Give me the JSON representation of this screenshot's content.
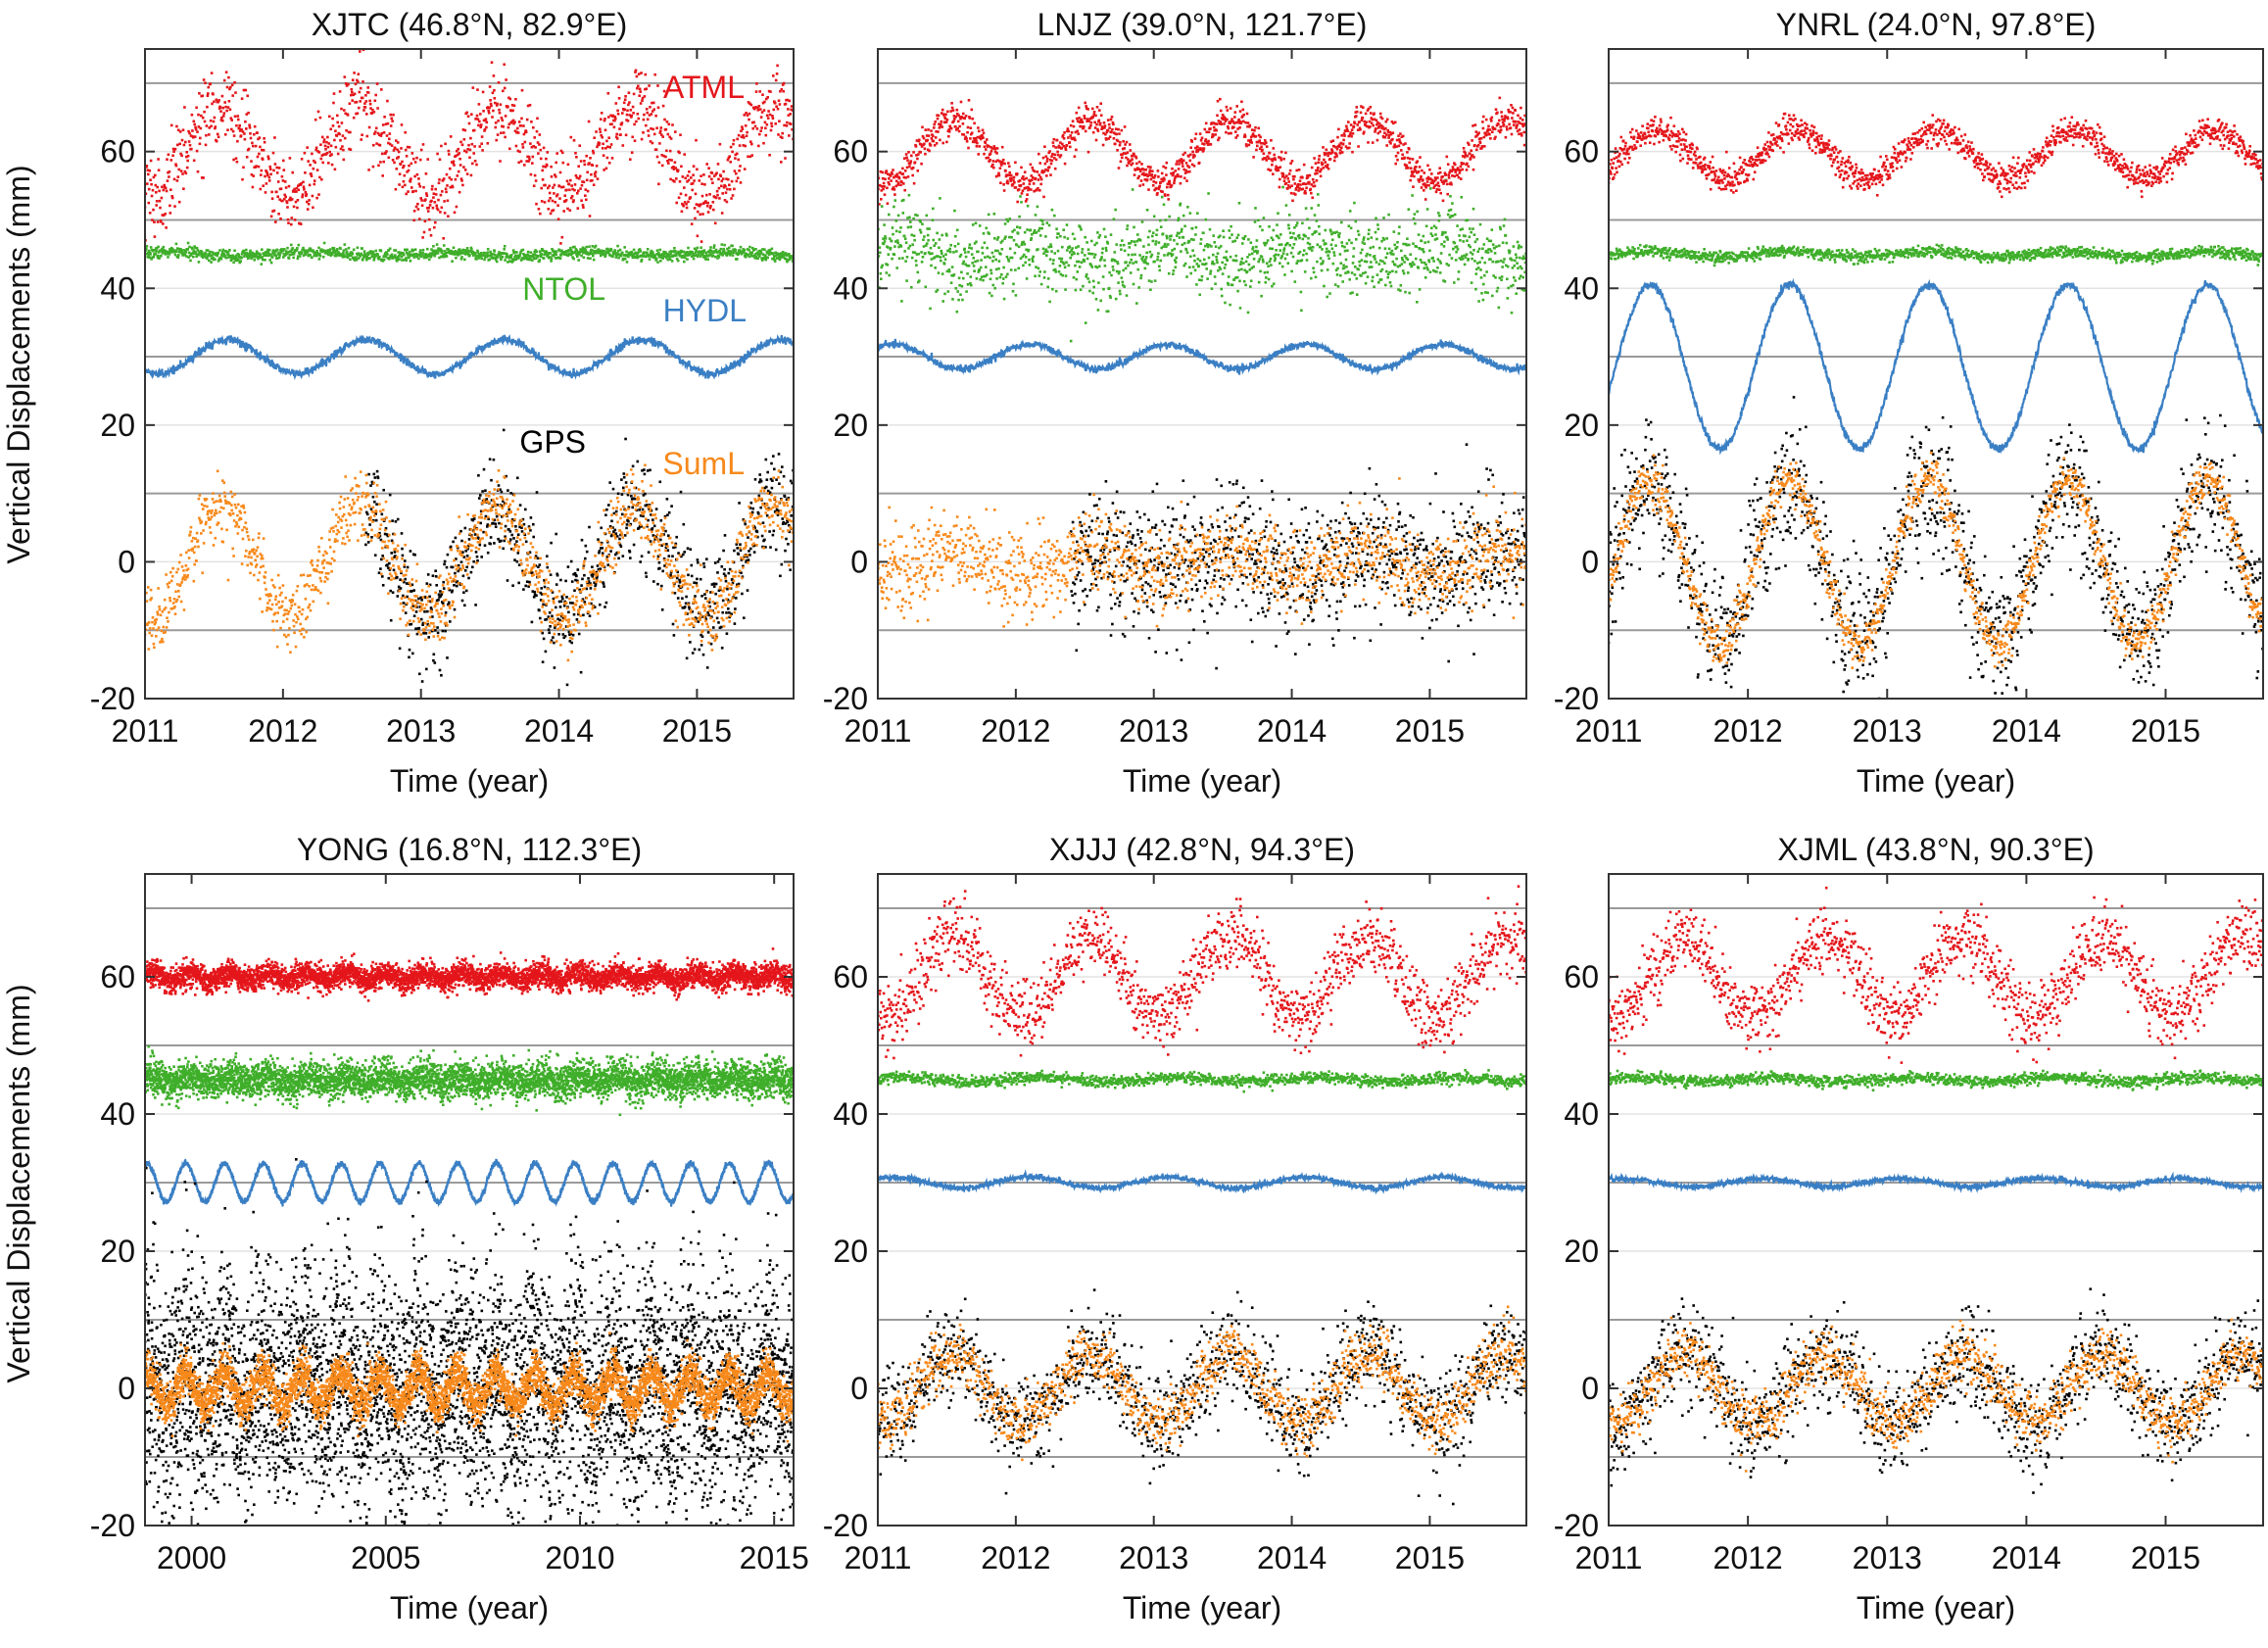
{
  "figure": {
    "ylabel_top": "Vertical Displacements (mm)",
    "ylabel_bottom": "Vertical Displacements (mm)"
  },
  "colors": {
    "ATML": "#e4161b",
    "NTOL": "#3fae2a",
    "HYDL": "#3a7fc4",
    "GPS": "#000000",
    "SumL": "#f7891b",
    "gridline": "#9a9a9a",
    "axis": "#333333"
  },
  "legend": {
    "ATML": "ATML",
    "NTOL": "NTOL",
    "HYDL": "HYDL",
    "GPS": "GPS",
    "SumL": "SumL"
  },
  "chart_data": [
    {
      "type": "scatter",
      "station": "XJTC",
      "title": "XJTC (46.8°N, 82.9°E)",
      "xlabel": "Time (year)",
      "ylabel": "Vertical Displacements (mm)",
      "xlim": [
        2011,
        2015.7
      ],
      "ylim": [
        -20,
        75
      ],
      "xticks": [
        2011,
        2012,
        2013,
        2014,
        2015
      ],
      "xtick_labels": [
        "2011",
        "2012",
        "2013",
        "2014",
        "2015"
      ],
      "yticks": [
        -20,
        0,
        20,
        40,
        60
      ],
      "ytick_labels": [
        "-20",
        "0",
        "20",
        "40",
        "60"
      ],
      "reference_lines": [
        70,
        50,
        30,
        10,
        -10
      ],
      "show_legend_labels": true,
      "series": [
        {
          "name": "ATML",
          "offset": 60,
          "amplitude": 6.5,
          "phase_peak": 0.55,
          "noise": 3.0,
          "start": 2011,
          "end": 2015.7
        },
        {
          "name": "NTOL",
          "offset": 45,
          "amplitude": 0.3,
          "phase_peak": 0.2,
          "noise": 0.45,
          "start": 2011,
          "end": 2015.7
        },
        {
          "name": "HYDL",
          "offset": 30,
          "amplitude": 2.5,
          "phase_peak": 0.6,
          "noise": 0.3,
          "start": 2011,
          "end": 2015.7
        },
        {
          "name": "GPS",
          "offset": 0,
          "amplitude": 8,
          "phase_peak": 0.55,
          "noise": 4.0,
          "start": 2012.6,
          "end": 2015.7
        },
        {
          "name": "SumL",
          "offset": 0,
          "amplitude": 8,
          "phase_peak": 0.55,
          "noise": 2.5,
          "start": 2011,
          "end": 2015.7
        }
      ]
    },
    {
      "type": "scatter",
      "station": "LNJZ",
      "title": "LNJZ (39.0°N, 121.7°E)",
      "xlabel": "Time (year)",
      "ylabel": "",
      "xlim": [
        2011,
        2015.7
      ],
      "ylim": [
        -20,
        75
      ],
      "xticks": [
        2011,
        2012,
        2013,
        2014,
        2015
      ],
      "xtick_labels": [
        "2011",
        "2012",
        "2013",
        "2014",
        "2015"
      ],
      "yticks": [
        -20,
        0,
        20,
        40,
        60
      ],
      "ytick_labels": [
        "-20",
        "0",
        "20",
        "40",
        "60"
      ],
      "reference_lines": [
        70,
        50,
        30,
        10,
        -10
      ],
      "show_legend_labels": false,
      "series": [
        {
          "name": "ATML",
          "offset": 60,
          "amplitude": 4.5,
          "phase_peak": 0.55,
          "noise": 1.3,
          "start": 2011,
          "end": 2015.7
        },
        {
          "name": "NTOL",
          "offset": 45,
          "amplitude": 1.5,
          "phase_peak": 0.1,
          "noise": 3.0,
          "start": 2011,
          "end": 2015.7
        },
        {
          "name": "HYDL",
          "offset": 30,
          "amplitude": 1.8,
          "phase_peak": 0.1,
          "noise": 0.25,
          "start": 2011,
          "end": 2015.7
        },
        {
          "name": "GPS",
          "offset": 0,
          "amplitude": 1.5,
          "phase_peak": 0.55,
          "noise": 5.0,
          "start": 2012.4,
          "end": 2015.7
        },
        {
          "name": "SumL",
          "offset": 0,
          "amplitude": 2,
          "phase_peak": 0.55,
          "noise": 3.0,
          "start": 2011,
          "end": 2015.7
        }
      ]
    },
    {
      "type": "scatter",
      "station": "YNRL",
      "title": "YNRL (24.0°N, 97.8°E)",
      "xlabel": "Time (year)",
      "ylabel": "",
      "xlim": [
        2011,
        2015.7
      ],
      "ylim": [
        -20,
        75
      ],
      "xticks": [
        2011,
        2012,
        2013,
        2014,
        2015
      ],
      "xtick_labels": [
        "2011",
        "2012",
        "2013",
        "2014",
        "2015"
      ],
      "yticks": [
        -20,
        0,
        20,
        40,
        60
      ],
      "ytick_labels": [
        "-20",
        "0",
        "20",
        "40",
        "60"
      ],
      "reference_lines": [
        70,
        50,
        30,
        10,
        -10
      ],
      "show_legend_labels": false,
      "series": [
        {
          "name": "ATML",
          "offset": 59.5,
          "amplitude": 3.5,
          "phase_peak": 0.35,
          "noise": 1.0,
          "start": 2011,
          "end": 2015.7
        },
        {
          "name": "NTOL",
          "offset": 45,
          "amplitude": 0.4,
          "phase_peak": 0.3,
          "noise": 0.4,
          "start": 2011,
          "end": 2015.7
        },
        {
          "name": "HYDL",
          "offset": 28.5,
          "amplitude": 12,
          "phase_peak": 0.3,
          "noise": 0.3,
          "start": 2011,
          "end": 2015.7
        },
        {
          "name": "GPS",
          "offset": 0,
          "amplitude": 11,
          "phase_peak": 0.3,
          "noise": 5.0,
          "start": 2011,
          "end": 2015.7
        },
        {
          "name": "SumL",
          "offset": 0,
          "amplitude": 12,
          "phase_peak": 0.3,
          "noise": 1.5,
          "start": 2011,
          "end": 2015.7
        }
      ]
    },
    {
      "type": "scatter",
      "station": "YONG",
      "title": "YONG (16.8°N, 112.3°E)",
      "xlabel": "Time (year)",
      "ylabel": "Vertical Displacements (mm)",
      "xlim": [
        1998.8,
        2015.5
      ],
      "ylim": [
        -20,
        75
      ],
      "xticks": [
        2000,
        2005,
        2010,
        2015
      ],
      "xtick_labels": [
        "2000",
        "2005",
        "2010",
        "2015"
      ],
      "yticks": [
        -20,
        0,
        20,
        40,
        60
      ],
      "ytick_labels": [
        "-20",
        "0",
        "20",
        "40",
        "60"
      ],
      "reference_lines": [
        70,
        50,
        30,
        10,
        -10
      ],
      "show_legend_labels": false,
      "series": [
        {
          "name": "ATML",
          "offset": 60,
          "amplitude": 0.6,
          "phase_peak": 0.0,
          "noise": 0.9,
          "start": 1998.8,
          "end": 2015.5
        },
        {
          "name": "NTOL",
          "offset": 45,
          "amplitude": 0.5,
          "phase_peak": 0.0,
          "noise": 1.3,
          "start": 1998.8,
          "end": 2015.5
        },
        {
          "name": "HYDL",
          "offset": 30,
          "amplitude": 2.8,
          "phase_peak": 0.85,
          "noise": 0.2,
          "start": 1998.8,
          "end": 2015.5
        },
        {
          "name": "GPS",
          "offset": 0,
          "amplitude": 4,
          "phase_peak": 0.85,
          "noise": 9.0,
          "start": 1998.8,
          "end": 2015.5
        },
        {
          "name": "SumL",
          "offset": 0,
          "amplitude": 2.5,
          "phase_peak": 0.85,
          "noise": 1.5,
          "start": 1998.8,
          "end": 2015.5
        }
      ]
    },
    {
      "type": "scatter",
      "station": "XJJJ",
      "title": "XJJJ (42.8°N, 94.3°E)",
      "xlabel": "Time (year)",
      "ylabel": "",
      "xlim": [
        2011,
        2015.7
      ],
      "ylim": [
        -20,
        75
      ],
      "xticks": [
        2011,
        2012,
        2013,
        2014,
        2015
      ],
      "xtick_labels": [
        "2011",
        "2012",
        "2013",
        "2014",
        "2015"
      ],
      "yticks": [
        -20,
        0,
        20,
        40,
        60
      ],
      "ytick_labels": [
        "-20",
        "0",
        "20",
        "40",
        "60"
      ],
      "reference_lines": [
        70,
        50,
        30,
        10,
        -10
      ],
      "show_legend_labels": false,
      "series": [
        {
          "name": "ATML",
          "offset": 60,
          "amplitude": 6,
          "phase_peak": 0.55,
          "noise": 2.5,
          "start": 2011,
          "end": 2015.7
        },
        {
          "name": "NTOL",
          "offset": 45,
          "amplitude": 0.3,
          "phase_peak": 0.2,
          "noise": 0.4,
          "start": 2011,
          "end": 2015.7
        },
        {
          "name": "HYDL",
          "offset": 30,
          "amplitude": 0.8,
          "phase_peak": 0.1,
          "noise": 0.2,
          "start": 2011,
          "end": 2015.7
        },
        {
          "name": "GPS",
          "offset": 0,
          "amplitude": 5,
          "phase_peak": 0.55,
          "noise": 3.5,
          "start": 2011,
          "end": 2015.7
        },
        {
          "name": "SumL",
          "offset": 0,
          "amplitude": 5,
          "phase_peak": 0.55,
          "noise": 2.0,
          "start": 2011,
          "end": 2015.7
        }
      ]
    },
    {
      "type": "scatter",
      "station": "XJML",
      "title": "XJML (43.8°N, 90.3°E)",
      "xlabel": "Time (year)",
      "ylabel": "",
      "xlim": [
        2011,
        2015.7
      ],
      "ylim": [
        -20,
        75
      ],
      "xticks": [
        2011,
        2012,
        2013,
        2014,
        2015
      ],
      "xtick_labels": [
        "2011",
        "2012",
        "2013",
        "2014",
        "2015"
      ],
      "yticks": [
        -20,
        0,
        20,
        40,
        60
      ],
      "ytick_labels": [
        "-20",
        "0",
        "20",
        "40",
        "60"
      ],
      "reference_lines": [
        70,
        50,
        30,
        10,
        -10
      ],
      "show_legend_labels": false,
      "series": [
        {
          "name": "ATML",
          "offset": 60,
          "amplitude": 6,
          "phase_peak": 0.55,
          "noise": 2.5,
          "start": 2011,
          "end": 2015.7
        },
        {
          "name": "NTOL",
          "offset": 45,
          "amplitude": 0.3,
          "phase_peak": 0.2,
          "noise": 0.4,
          "start": 2011,
          "end": 2015.7
        },
        {
          "name": "HYDL",
          "offset": 30,
          "amplitude": 0.6,
          "phase_peak": 0.1,
          "noise": 0.2,
          "start": 2011,
          "end": 2015.7
        },
        {
          "name": "GPS",
          "offset": 0,
          "amplitude": 5,
          "phase_peak": 0.55,
          "noise": 3.5,
          "start": 2011,
          "end": 2015.7
        },
        {
          "name": "SumL",
          "offset": 0,
          "amplitude": 5,
          "phase_peak": 0.55,
          "noise": 2.0,
          "start": 2011,
          "end": 2015.7
        }
      ]
    }
  ]
}
